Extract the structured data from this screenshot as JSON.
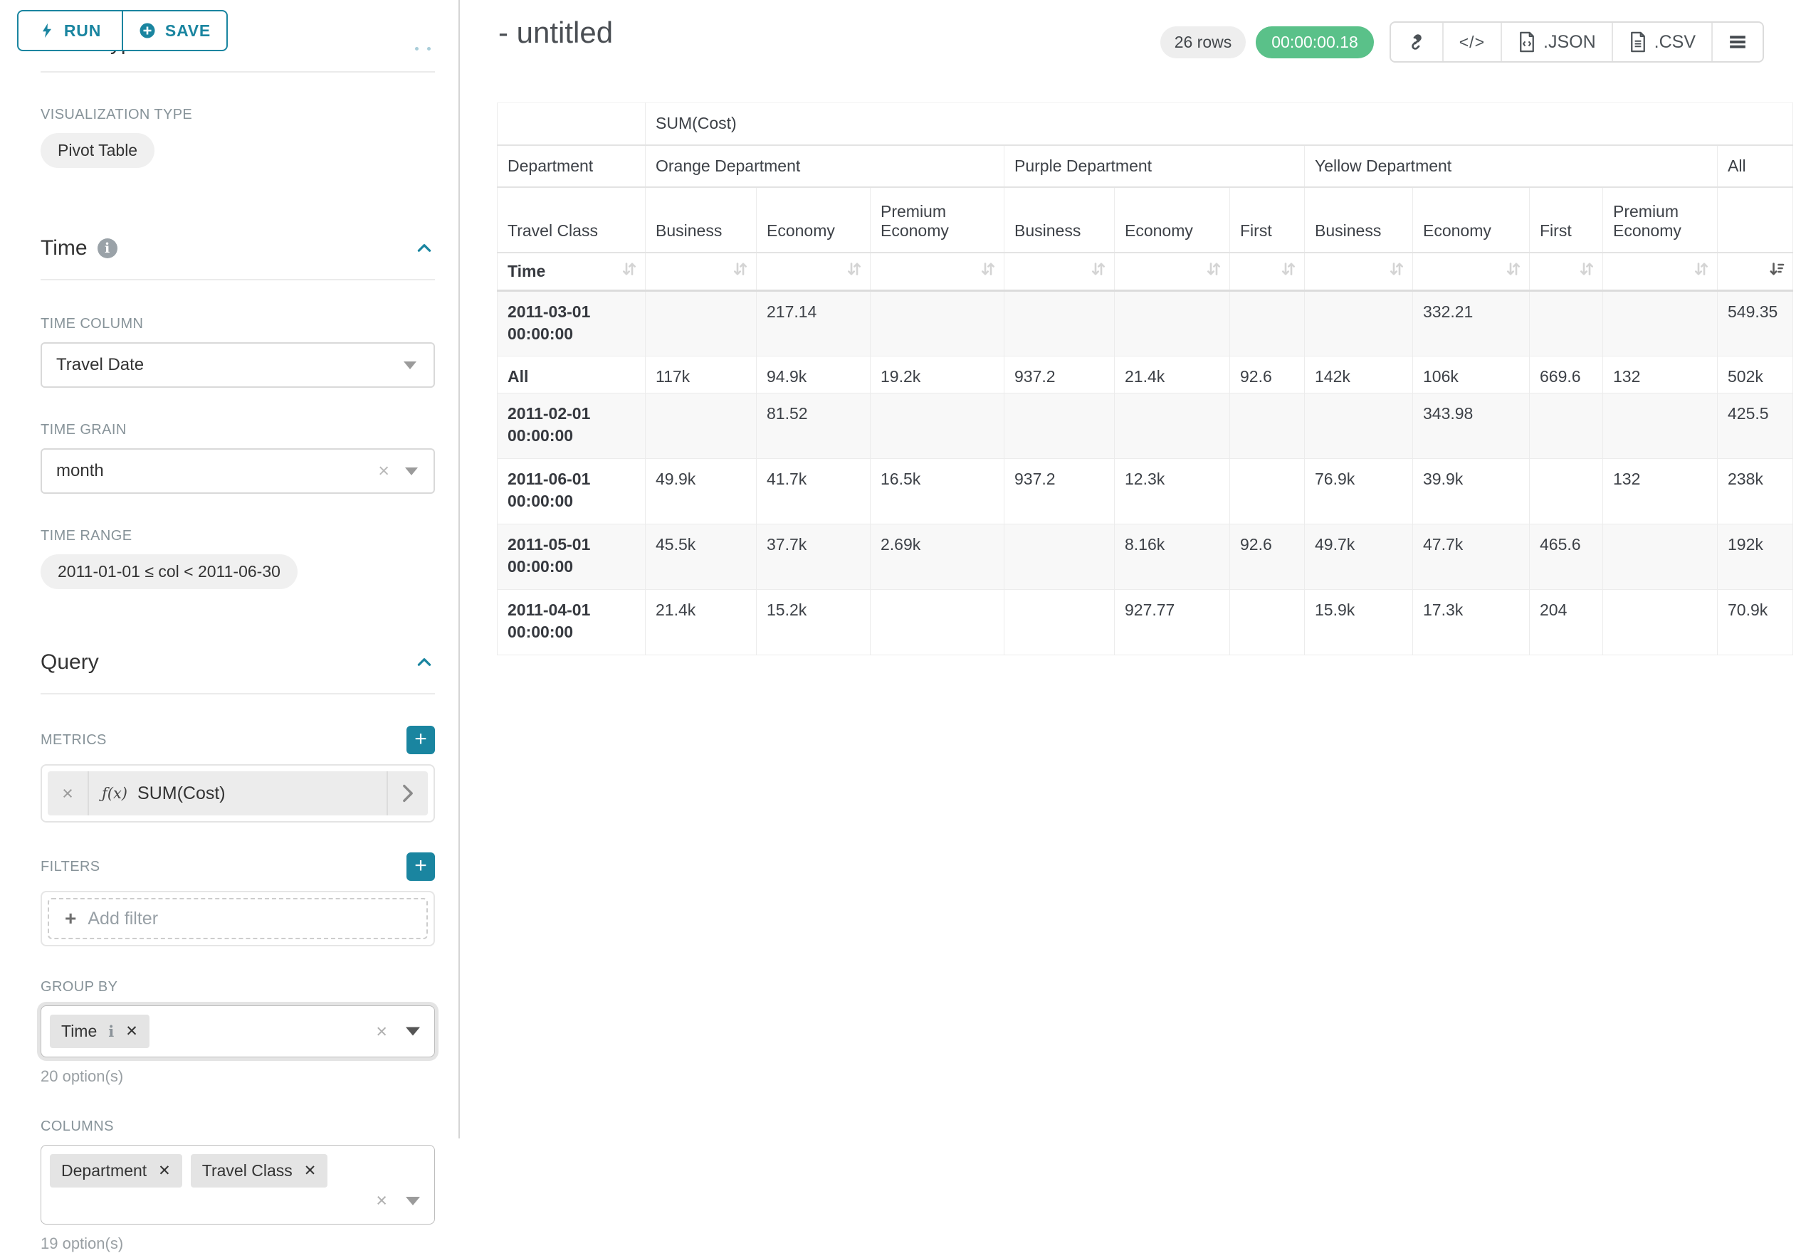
{
  "colors": {
    "accent": "#1a85a0",
    "success": "#5ac189",
    "label_gray": "#879399"
  },
  "sidebar": {
    "run_label": "RUN",
    "save_label": "SAVE",
    "chart_type_heading": "Chart Type",
    "viz": {
      "label": "VISUALIZATION TYPE",
      "value": "Pivot Table"
    },
    "time": {
      "title": "Time",
      "time_column": {
        "label": "TIME COLUMN",
        "value": "Travel Date"
      },
      "time_grain": {
        "label": "TIME GRAIN",
        "value": "month"
      },
      "time_range": {
        "label": "TIME RANGE",
        "value": "2011-01-01 ≤ col < 2011-06-30"
      }
    },
    "query": {
      "title": "Query",
      "metrics": {
        "label": "METRICS",
        "fx": "ƒ(x)",
        "value": "SUM(Cost)"
      },
      "filters": {
        "label": "FILTERS",
        "placeholder": "Add filter"
      },
      "group_by": {
        "label": "GROUP BY",
        "chips": [
          "Time"
        ],
        "options": "20 option(s)"
      },
      "columns": {
        "label": "COLUMNS",
        "chips": [
          "Department",
          "Travel Class"
        ],
        "options": "19 option(s)"
      }
    }
  },
  "header": {
    "title": "- untitled",
    "rows_badge": "26 rows",
    "timer": "00:00:00.18",
    "export_json": ".JSON",
    "export_csv": ".CSV"
  },
  "pivot": {
    "metric_header": "SUM(Cost)",
    "row_dim": "Department",
    "col_dim": "Travel Class",
    "time_label": "Time",
    "groups": [
      {
        "label": "Orange Department",
        "cols": [
          "Business",
          "Economy",
          "Premium Economy"
        ]
      },
      {
        "label": "Purple Department",
        "cols": [
          "Business",
          "Economy",
          "First"
        ]
      },
      {
        "label": "Yellow Department",
        "cols": [
          "Business",
          "Economy",
          "First",
          "Premium Economy"
        ]
      },
      {
        "label": "All",
        "cols": [
          ""
        ]
      }
    ],
    "rows": [
      {
        "label": "2011-03-01 00:00:00",
        "values": [
          "",
          "217.14",
          "",
          "",
          "",
          "",
          "",
          "332.21",
          "",
          "",
          "549.35"
        ]
      },
      {
        "label": "All",
        "values": [
          "117k",
          "94.9k",
          "19.2k",
          "937.2",
          "21.4k",
          "92.6",
          "142k",
          "106k",
          "669.6",
          "132",
          "502k"
        ]
      },
      {
        "label": "2011-02-01 00:00:00",
        "values": [
          "",
          "81.52",
          "",
          "",
          "",
          "",
          "",
          "343.98",
          "",
          "",
          "425.5"
        ]
      },
      {
        "label": "2011-06-01 00:00:00",
        "values": [
          "49.9k",
          "41.7k",
          "16.5k",
          "937.2",
          "12.3k",
          "",
          "76.9k",
          "39.9k",
          "",
          "132",
          "238k"
        ]
      },
      {
        "label": "2011-05-01 00:00:00",
        "values": [
          "45.5k",
          "37.7k",
          "2.69k",
          "",
          "8.16k",
          "92.6",
          "49.7k",
          "47.7k",
          "465.6",
          "",
          "192k"
        ]
      },
      {
        "label": "2011-04-01 00:00:00",
        "values": [
          "21.4k",
          "15.2k",
          "",
          "",
          "927.77",
          "",
          "15.9k",
          "17.3k",
          "204",
          "",
          "70.9k"
        ]
      }
    ]
  }
}
